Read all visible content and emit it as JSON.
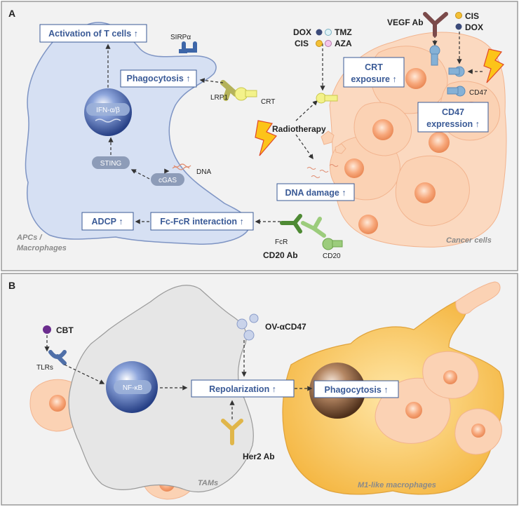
{
  "panelA": {
    "letter": "A",
    "boxes": {
      "tcell": "Activation of T cells ↑",
      "phago": "Phagocytosis ↑",
      "adcp": "ADCP ↑",
      "fcr_interaction": "Fc-FcR interaction ↑",
      "crt_line1": "CRT",
      "crt_line2": "exposure ↑",
      "cd47_line1": "CD47",
      "cd47_line2": "expression ↑",
      "dna_damage": "DNA damage ↑"
    },
    "labels": {
      "sirpa": "SIRPα",
      "lrp1": "LRP1",
      "crt": "CRT",
      "ifn": "IFN-α/β",
      "sting": "STING",
      "cgas": "cGAS",
      "dna": "DNA",
      "radiotherapy": "Radiotherapy",
      "fcr": "FcR",
      "cd20": "CD20",
      "cd20ab": "CD20 Ab",
      "cd47": "CD47",
      "vegfab": "VEGF Ab",
      "apcs1": "APCs /",
      "apcs2": "Macrophages",
      "cancer": "Cancer cells"
    },
    "drugs": {
      "dox": "DOX",
      "tmz": "TMZ",
      "cis": "CIS",
      "aza": "AZA",
      "cis2": "CIS",
      "dox2": "DOX"
    }
  },
  "panelB": {
    "letter": "B",
    "labels": {
      "cbt": "CBT",
      "tlrs": "TLRs",
      "nfkb": "NF-κB",
      "ov": "OV-αCD47",
      "her2": "Her2 Ab",
      "tams": "TAMs",
      "m1": "M1-like macrophages"
    },
    "boxes": {
      "repol": "Repolarization ↑",
      "phago": "Phagocytosis ↑"
    }
  },
  "colors": {
    "panel_bg": "#f2f2f2",
    "macrophage": "#d6e0f3",
    "cancer": "#fbd9c0",
    "nucleus_blue": "#3f5fa8",
    "box_text": "#3a5a96",
    "m1": "#f6c25c",
    "tam": "#e6e6e6",
    "lightning": "#fcc419"
  }
}
